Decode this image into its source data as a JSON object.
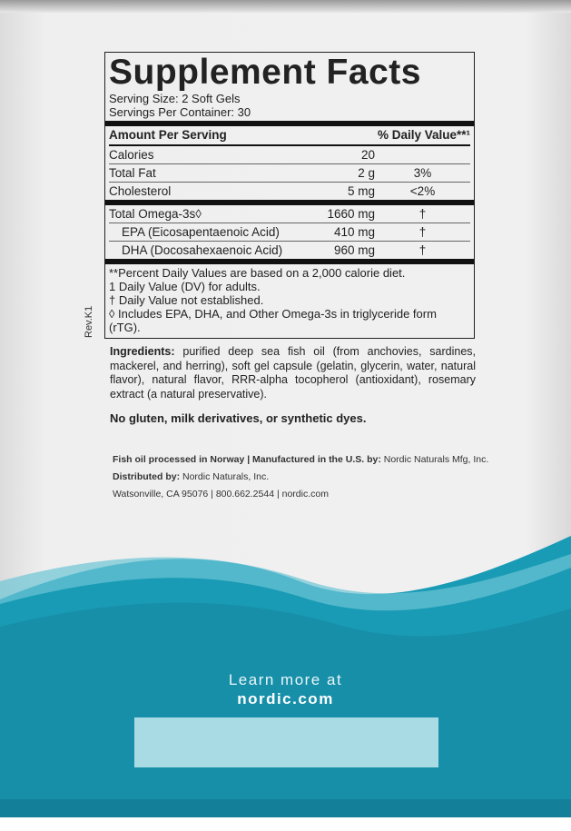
{
  "title": "Supplement Facts",
  "serving_size": "Serving Size: 2 Soft Gels",
  "servings_per_container": "Servings Per Container: 30",
  "header": {
    "amount": "Amount Per Serving",
    "dv": "% Daily Value**¹"
  },
  "rows": [
    {
      "name": "Calories",
      "amount": "20",
      "dv": ""
    },
    {
      "name": "Total Fat",
      "amount": "2 g",
      "dv": "3%"
    },
    {
      "name": "Cholesterol",
      "amount": "5 mg",
      "dv": "<2%"
    },
    {
      "name": "Total Omega-3s◊",
      "amount": "1660 mg",
      "dv": "†"
    },
    {
      "name": "EPA (Eicosapentaenoic Acid)",
      "amount": "410 mg",
      "dv": "†"
    },
    {
      "name": "DHA (Docosahexaenoic Acid)",
      "amount": "960 mg",
      "dv": "†"
    }
  ],
  "footnotes": [
    "**Percent Daily Values are based on a 2,000 calorie diet.",
    "1 Daily Value (DV) for adults.",
    "† Daily Value not established.",
    "◊ Includes EPA, DHA, and Other Omega-3s in triglyceride form (rTG)."
  ],
  "revision": "Rev.K1",
  "ingredients_label": "Ingredients:",
  "ingredients": " purified deep sea fish oil (from anchovies, sardines, mackerel, and herring), soft gel capsule (gelatin, glycerin, water, natural flavor), natural flavor, RRR-alpha tocopherol (antioxidant), rosemary extract (a natural preservative).",
  "free_from": "No gluten, milk derivatives, or synthetic dyes.",
  "mfg": {
    "l1a": "Fish oil processed in Norway | Manufactured in the U.S. by:",
    "l1b": " Nordic Naturals Mfg, Inc.",
    "l2a": "Distributed by:",
    "l2b": " Nordic Naturals, Inc.",
    "l3": "Watsonville, CA 95076 | 800.662.2544 | nordic.com"
  },
  "learn_more": "Learn more at",
  "website": "nordic.com",
  "colors": {
    "teal": "#1a9bb5",
    "teal_dark": "#137f98",
    "light_box": "#a9dbe4"
  }
}
